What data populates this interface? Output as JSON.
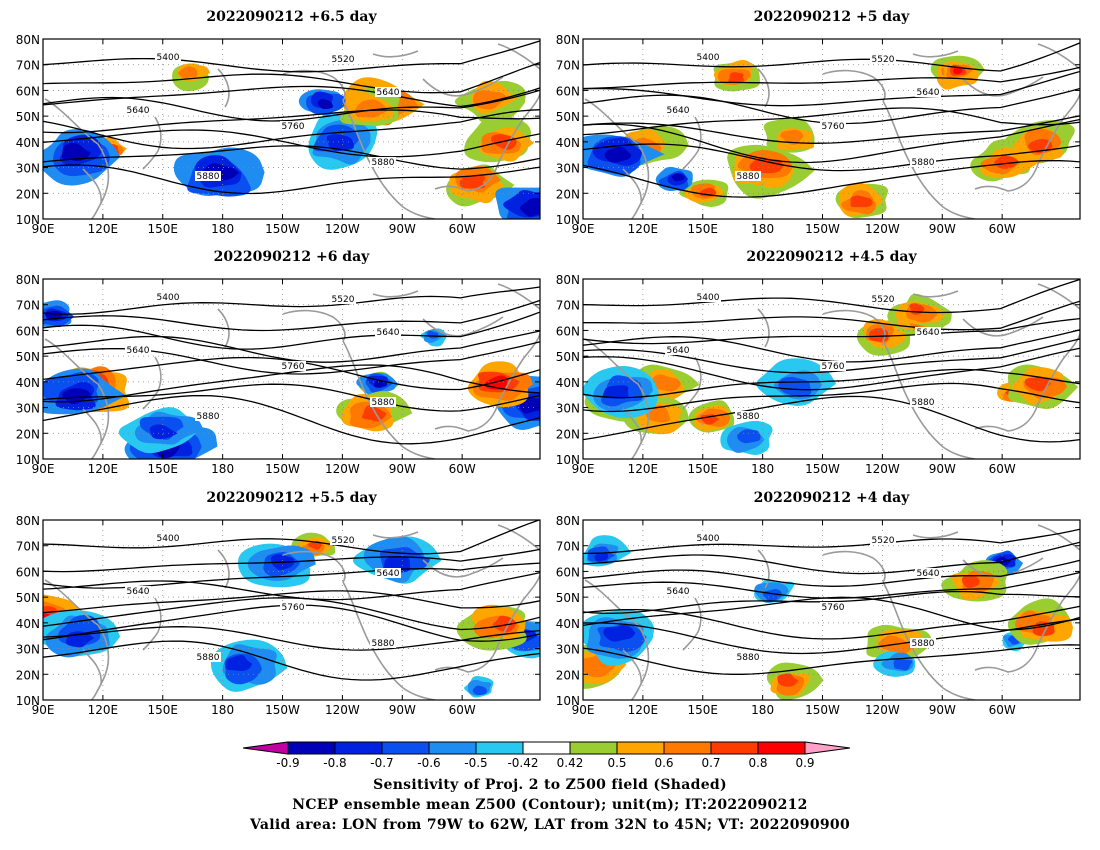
{
  "panels": [
    {
      "title": "2022090212  +6.5 day",
      "seed": 11,
      "pos": "top-left"
    },
    {
      "title": "2022090212  +5 day",
      "seed": 23,
      "pos": "top-right"
    },
    {
      "title": "2022090212  +6 day",
      "seed": 37,
      "pos": "middle-left"
    },
    {
      "title": "2022090212  +4.5 day",
      "seed": 41,
      "pos": "middle-right"
    },
    {
      "title": "2022090212  +5.5 day",
      "seed": 53,
      "pos": "bottom-left"
    },
    {
      "title": "2022090212  +4 day",
      "seed": 67,
      "pos": "bottom-right"
    }
  ],
  "axes": {
    "lat_labels": [
      "80N",
      "70N",
      "60N",
      "50N",
      "40N",
      "30N",
      "20N",
      "10N"
    ],
    "lon_labels": [
      "90E",
      "120E",
      "150E",
      "180",
      "150W",
      "120W",
      "90W",
      "60W"
    ]
  },
  "contour_labels": [
    "5400",
    "5520",
    "5640",
    "5760",
    "5880"
  ],
  "colorbar": {
    "ticks": [
      "-0.9",
      "-0.8",
      "-0.7",
      "-0.6",
      "-0.5",
      "-0.42",
      "0.42",
      "0.5",
      "0.6",
      "0.7",
      "0.8",
      "0.9"
    ],
    "colors": [
      "#c000a0",
      "#0000b8",
      "#0022e0",
      "#0a50f0",
      "#1e8cf0",
      "#28c8f0",
      "#ffffff",
      "#9acd32",
      "#ffa500",
      "#ff7800",
      "#ff3c00",
      "#ff0000",
      "#ffa0c8"
    ]
  },
  "captions": {
    "line1": "Sensitivity of Proj. 2 to Z500 field (Shaded)",
    "line2": "NCEP ensemble mean Z500 (Contour); unit(m); IT:2022090212",
    "line3": "Valid area: LON from 79W to 62W, LAT from 32N to 45N; VT: 2022090900"
  }
}
